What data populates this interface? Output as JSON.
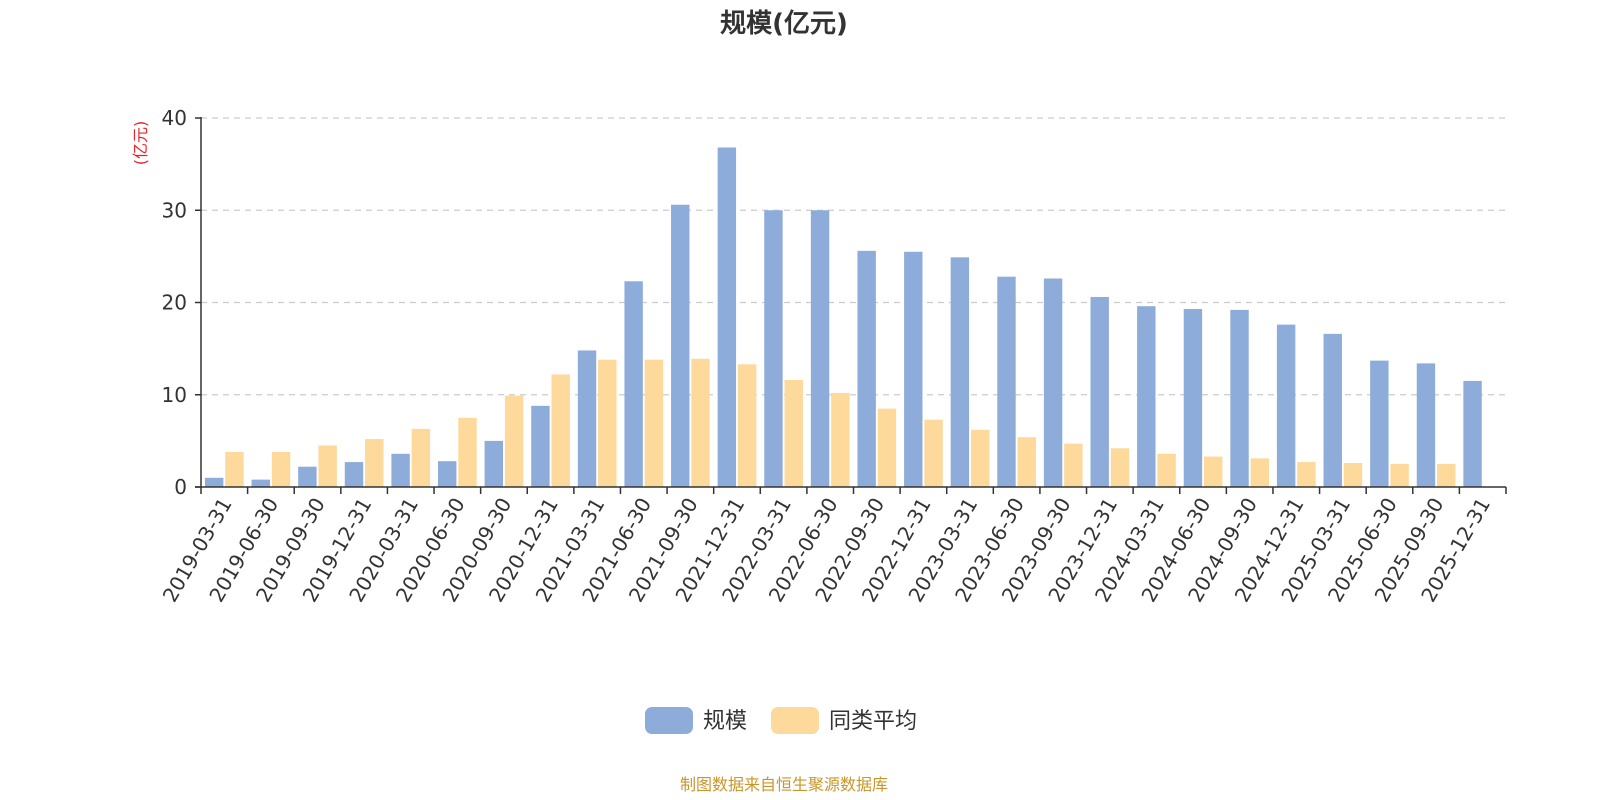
{
  "chart_data": {
    "type": "bar",
    "title": "规模(亿元)",
    "ylabel": "(亿元)",
    "ylim": [
      0,
      40
    ],
    "yticks": [
      0,
      10,
      20,
      30,
      40
    ],
    "grid": true,
    "legend_position": "bottom-center",
    "categories": [
      "2019-03-31",
      "2019-06-30",
      "2019-09-30",
      "2019-12-31",
      "2020-03-31",
      "2020-06-30",
      "2020-09-30",
      "2020-12-31",
      "2021-03-31",
      "2021-06-30",
      "2021-09-30",
      "2021-12-31",
      "2022-03-31",
      "2022-06-30",
      "2022-09-30",
      "2022-12-31",
      "2023-03-31",
      "2023-06-30",
      "2023-09-30",
      "2023-12-31",
      "2024-03-31",
      "2024-06-30",
      "2024-09-30",
      "2024-12-31",
      "2025-03-31",
      "2025-06-30",
      "2025-09-30",
      "2025-12-31"
    ],
    "series": [
      {
        "name": "规模",
        "color": "#8eacd9",
        "values": [
          1.0,
          0.8,
          2.2,
          2.7,
          3.6,
          2.8,
          5.0,
          8.8,
          14.8,
          22.3,
          30.6,
          36.8,
          30.0,
          30.0,
          25.6,
          25.5,
          24.9,
          22.8,
          22.6,
          20.6,
          19.6,
          19.3,
          19.2,
          17.6,
          16.6,
          13.7,
          13.4,
          11.5
        ]
      },
      {
        "name": "同类平均",
        "color": "#fdd99b",
        "values": [
          3.8,
          3.8,
          4.5,
          5.2,
          6.3,
          7.5,
          9.9,
          12.2,
          13.8,
          13.8,
          13.9,
          13.3,
          11.6,
          10.2,
          8.5,
          7.3,
          6.2,
          5.4,
          4.7,
          4.2,
          3.6,
          3.3,
          3.1,
          2.7,
          2.6,
          2.5,
          2.5,
          null
        ]
      }
    ],
    "source": "制图数据来自恒生聚源数据库",
    "colors": {
      "axis": "#333333",
      "grid": "#cccccc",
      "unit": "#e8232b",
      "source": "#c9962a",
      "text": "#333333"
    }
  }
}
